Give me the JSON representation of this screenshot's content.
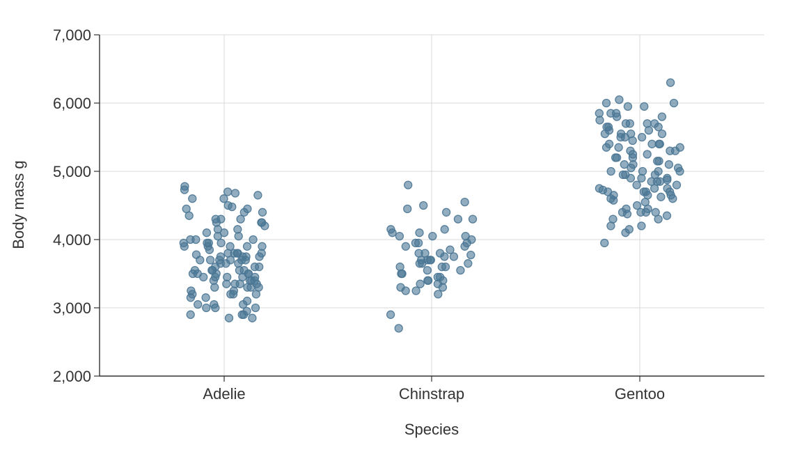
{
  "chart_data": {
    "type": "scatter",
    "title": "",
    "xlabel": "Species",
    "ylabel": "Body mass g",
    "categories": [
      "Adelie",
      "Chinstrap",
      "Gentoo"
    ],
    "ylim": [
      2000,
      7000
    ],
    "yticks": [
      2000,
      3000,
      4000,
      5000,
      6000,
      7000
    ],
    "ytick_labels": [
      "2,000",
      "3,000",
      "4,000",
      "5,000",
      "6,000",
      "7,000"
    ],
    "grid": true,
    "point_color": "#4a7694",
    "series": [
      {
        "category": "Adelie",
        "values": [
          4780,
          4730,
          4700,
          4680,
          4650,
          4600,
          4600,
          4500,
          4480,
          4450,
          4450,
          4400,
          4400,
          4350,
          4300,
          4300,
          4300,
          4250,
          4250,
          4250,
          4200,
          4150,
          4150,
          4100,
          4100,
          4050,
          4050,
          4000,
          4000,
          4000,
          3950,
          3950,
          3950,
          3950,
          3900,
          3900,
          3900,
          3900,
          3900,
          3850,
          3800,
          3800,
          3800,
          3800,
          3800,
          3780,
          3750,
          3750,
          3750,
          3750,
          3700,
          3700,
          3700,
          3700,
          3700,
          3700,
          3650,
          3650,
          3650,
          3600,
          3600,
          3600,
          3550,
          3550,
          3550,
          3550,
          3550,
          3500,
          3500,
          3500,
          3500,
          3500,
          3450,
          3450,
          3450,
          3450,
          3450,
          3400,
          3400,
          3400,
          3400,
          3350,
          3350,
          3350,
          3350,
          3300,
          3300,
          3300,
          3300,
          3250,
          3250,
          3200,
          3200,
          3200,
          3200,
          3150,
          3150,
          3100,
          3050,
          3050,
          3050,
          3000,
          3000,
          3000,
          2950,
          2900,
          2900,
          2900,
          2850,
          2850
        ]
      },
      {
        "category": "Chinstrap",
        "values": [
          4800,
          4550,
          4500,
          4450,
          4400,
          4300,
          4300,
          4150,
          4150,
          4100,
          4100,
          4050,
          4050,
          4050,
          4000,
          3950,
          3950,
          3950,
          3900,
          3900,
          3850,
          3800,
          3800,
          3800,
          3775,
          3750,
          3750,
          3700,
          3700,
          3700,
          3700,
          3650,
          3650,
          3650,
          3600,
          3600,
          3600,
          3550,
          3550,
          3500,
          3500,
          3450,
          3450,
          3400,
          3400,
          3400,
          3350,
          3350,
          3300,
          3300,
          3250,
          3250,
          3200,
          2900,
          2700
        ]
      },
      {
        "category": "Gentoo",
        "values": [
          6300,
          6050,
          6000,
          6000,
          5950,
          5950,
          5850,
          5850,
          5850,
          5800,
          5800,
          5750,
          5700,
          5700,
          5700,
          5700,
          5650,
          5650,
          5650,
          5600,
          5600,
          5550,
          5550,
          5550,
          5550,
          5500,
          5500,
          5500,
          5450,
          5400,
          5400,
          5400,
          5400,
          5350,
          5350,
          5350,
          5300,
          5300,
          5300,
          5250,
          5250,
          5200,
          5200,
          5200,
          5150,
          5150,
          5100,
          5100,
          5100,
          5050,
          5050,
          5000,
          5000,
          5000,
          5000,
          4950,
          4950,
          4950,
          4900,
          4900,
          4900,
          4875,
          4850,
          4850,
          4850,
          4800,
          4800,
          4750,
          4750,
          4750,
          4725,
          4700,
          4700,
          4700,
          4700,
          4650,
          4650,
          4650,
          4625,
          4600,
          4600,
          4575,
          4550,
          4500,
          4450,
          4450,
          4400,
          4400,
          4400,
          4400,
          4375,
          4350,
          4300,
          4300,
          4200,
          4200,
          4150,
          4100,
          3950
        ]
      }
    ]
  }
}
